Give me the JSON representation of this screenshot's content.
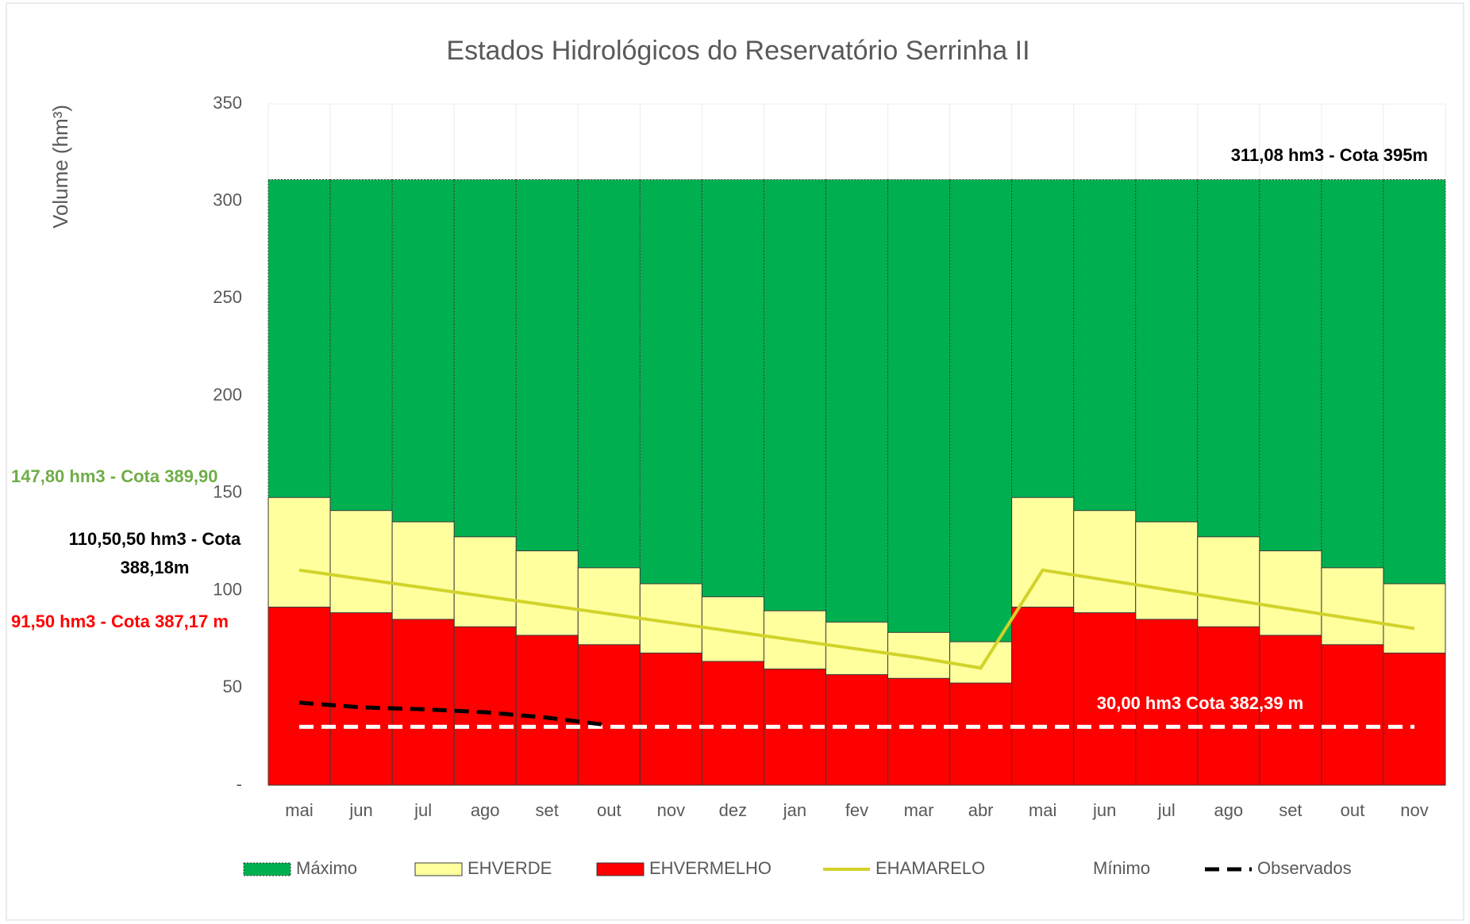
{
  "chart_data": {
    "type": "bar",
    "title": "Estados Hidrológicos do Reservatório Serrinha II",
    "y_label": "Volume (hm³)",
    "categories": [
      "mai",
      "jun",
      "jul",
      "ago",
      "set",
      "out",
      "nov",
      "dez",
      "jan",
      "fev",
      "mar",
      "abr",
      "mai",
      "jun",
      "jul",
      "ago",
      "set",
      "out",
      "nov"
    ],
    "ylim": [
      0,
      350
    ],
    "yticks": [
      {
        "value": 0,
        "label": "-"
      },
      50,
      100,
      150,
      200,
      250,
      300,
      350
    ],
    "grid": true,
    "legend": "bottom",
    "series": [
      {
        "name": "Máximo",
        "type": "bar",
        "color": "#00b050",
        "values": [
          311.08,
          311.08,
          311.08,
          311.08,
          311.08,
          311.08,
          311.08,
          311.08,
          311.08,
          311.08,
          311.08,
          311.08,
          311.08,
          311.08,
          311.08,
          311.08,
          311.08,
          311.08,
          311.08
        ]
      },
      {
        "name": "EHVERDE",
        "type": "bar",
        "color": "#ffff9e",
        "values": [
          147.8,
          141.1,
          135.3,
          127.6,
          120.4,
          111.7,
          103.5,
          96.8,
          89.6,
          83.8,
          78.5,
          73.7,
          147.8,
          141.1,
          135.3,
          127.6,
          120.4,
          111.7,
          103.5
        ]
      },
      {
        "name": "EHVERMELHO",
        "type": "bar",
        "color": "#ff0000",
        "values": [
          91.5,
          88.6,
          85.2,
          81.4,
          77,
          72.2,
          67.9,
          63.6,
          59.7,
          56.8,
          54.9,
          52.5,
          91.5,
          88.6,
          85.2,
          81.4,
          77,
          72.2,
          67.9
        ]
      },
      {
        "name": "EHAMARELO",
        "type": "line",
        "color": "#d2d22a",
        "values": [
          110.5,
          106,
          101.5,
          97,
          92.5,
          88,
          83.5,
          79,
          74.5,
          70,
          65.5,
          60.2,
          110.5,
          105.5,
          100.5,
          95.5,
          90.5,
          85.5,
          80.5
        ]
      },
      {
        "name": "Mínimo",
        "type": "dashed",
        "color": "#ffffff",
        "values": [
          30,
          30,
          30,
          30,
          30,
          30,
          30,
          30,
          30,
          30,
          30,
          30,
          30,
          30,
          30,
          30,
          30,
          30,
          30
        ]
      },
      {
        "name": "Observados",
        "type": "dashed",
        "color": "#000000",
        "values": [
          42.4,
          40,
          39,
          37.5,
          34.7,
          30.8,
          null,
          null,
          null,
          null,
          null,
          null,
          null,
          null,
          null,
          null,
          null,
          null,
          null
        ]
      }
    ],
    "annotations": [
      {
        "lines": [
          "311,08 hm3 - Cota 395m"
        ],
        "color": "#000000"
      },
      {
        "lines": [
          "147,80 hm3 - Cota 389,90"
        ],
        "color": "#70ad47"
      },
      {
        "lines": [
          "110,50,50 hm3 - Cota",
          "388,18m"
        ],
        "color": "#000000"
      },
      {
        "lines": [
          "91,50 hm3 - Cota 387,17 m"
        ],
        "color": "#ff0000"
      },
      {
        "lines": [
          "30,00 hm3 Cota 382,39 m"
        ],
        "color": "#ffffff"
      }
    ]
  }
}
